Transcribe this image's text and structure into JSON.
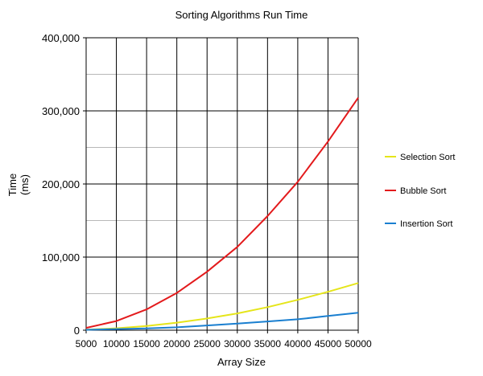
{
  "chart_data": {
    "type": "line",
    "title": "Sorting Algorithms Run Time",
    "xlabel": "Array Size",
    "ylabel": [
      "Time",
      "(ms)"
    ],
    "x": [
      5000,
      10000,
      15000,
      20000,
      25000,
      30000,
      35000,
      40000,
      45000,
      50000
    ],
    "x_tick_labels": [
      "5000",
      "10000",
      "15000",
      "20000",
      "25000",
      "30000",
      "35000",
      "40000",
      "45000",
      "50000"
    ],
    "ylim": [
      0,
      400000
    ],
    "y_ticks": [
      0,
      100000,
      200000,
      300000,
      400000
    ],
    "y_tick_labels": [
      "0",
      "100,000",
      "200,000",
      "300,000",
      "400,000"
    ],
    "grid": true,
    "legend_position": "right",
    "series": [
      {
        "name": "Selection Sort",
        "color": "#e5e51a",
        "values": [
          700,
          2600,
          5700,
          10300,
          16000,
          23000,
          31500,
          41500,
          52500,
          64500
        ]
      },
      {
        "name": "Bubble Sort",
        "color": "#e31a1c",
        "values": [
          3200,
          12500,
          28500,
          51000,
          80000,
          114000,
          156000,
          203000,
          258000,
          318000
        ]
      },
      {
        "name": "Insertion Sort",
        "color": "#1a7fd0",
        "values": [
          500,
          1500,
          2500,
          4000,
          6500,
          9000,
          12000,
          15000,
          19500,
          24000
        ]
      }
    ]
  }
}
